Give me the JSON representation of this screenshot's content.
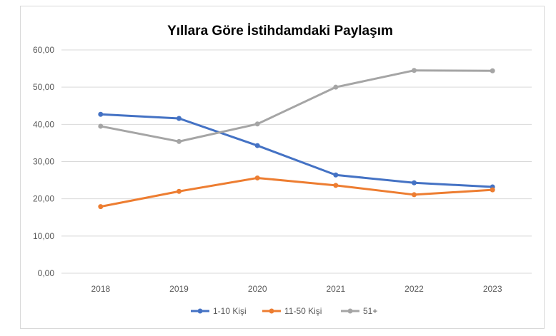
{
  "chart_data": {
    "type": "line",
    "title": "Yıllara Göre İstihdamdaki Paylaşım",
    "xlabel": "",
    "ylabel": "",
    "categories": [
      "2018",
      "2019",
      "2020",
      "2021",
      "2022",
      "2023"
    ],
    "ylim": [
      0,
      60
    ],
    "yticks": [
      "0,00",
      "10,00",
      "20,00",
      "30,00",
      "40,00",
      "50,00",
      "60,00"
    ],
    "grid": true,
    "legend_position": "bottom",
    "series": [
      {
        "name": "1-10 Kişi",
        "color": "#4472C4",
        "values": [
          42.7,
          41.6,
          34.3,
          26.4,
          24.3,
          23.2
        ]
      },
      {
        "name": "11-50 Kişi",
        "color": "#ED7D31",
        "values": [
          17.9,
          22.0,
          25.6,
          23.6,
          21.1,
          22.4
        ]
      },
      {
        "name": "51+",
        "color": "#A5A5A5",
        "values": [
          39.5,
          35.4,
          40.1,
          50.0,
          54.5,
          54.4
        ]
      }
    ]
  }
}
